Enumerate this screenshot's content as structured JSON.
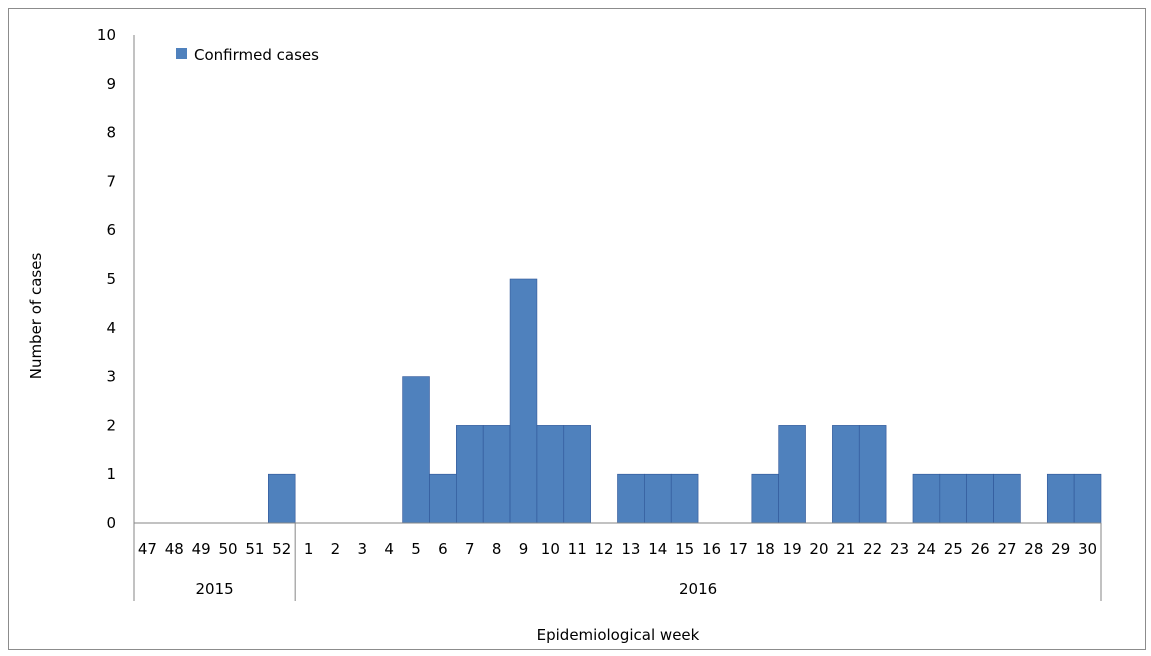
{
  "chart_data": {
    "type": "bar",
    "categories": [
      "47",
      "48",
      "49",
      "50",
      "51",
      "52",
      "1",
      "2",
      "3",
      "4",
      "5",
      "6",
      "7",
      "8",
      "9",
      "10",
      "11",
      "12",
      "13",
      "14",
      "15",
      "16",
      "17",
      "18",
      "19",
      "20",
      "21",
      "22",
      "23",
      "24",
      "25",
      "26",
      "27",
      "28",
      "29",
      "30"
    ],
    "groups": [
      {
        "label": "2015",
        "count": 6
      },
      {
        "label": "2016",
        "count": 30
      }
    ],
    "series": [
      {
        "name": "Confirmed cases",
        "values": [
          0,
          0,
          0,
          0,
          0,
          1,
          0,
          0,
          0,
          0,
          3,
          1,
          2,
          2,
          5,
          2,
          2,
          0,
          1,
          1,
          1,
          0,
          0,
          1,
          2,
          0,
          2,
          2,
          0,
          1,
          1,
          1,
          1,
          0,
          1,
          1
        ]
      }
    ],
    "title": "",
    "xlabel": "Epidemiological week",
    "ylabel": "Number of cases",
    "ylim": [
      0,
      10
    ],
    "yticks": [
      "0",
      "1",
      "2",
      "3",
      "4",
      "5",
      "6",
      "7",
      "8",
      "9",
      "10"
    ],
    "grid": false,
    "legend_position": "top-left",
    "colors": {
      "bar": "#4f81bd",
      "bar_stroke": "#2f5597",
      "axis": "#868686"
    }
  }
}
